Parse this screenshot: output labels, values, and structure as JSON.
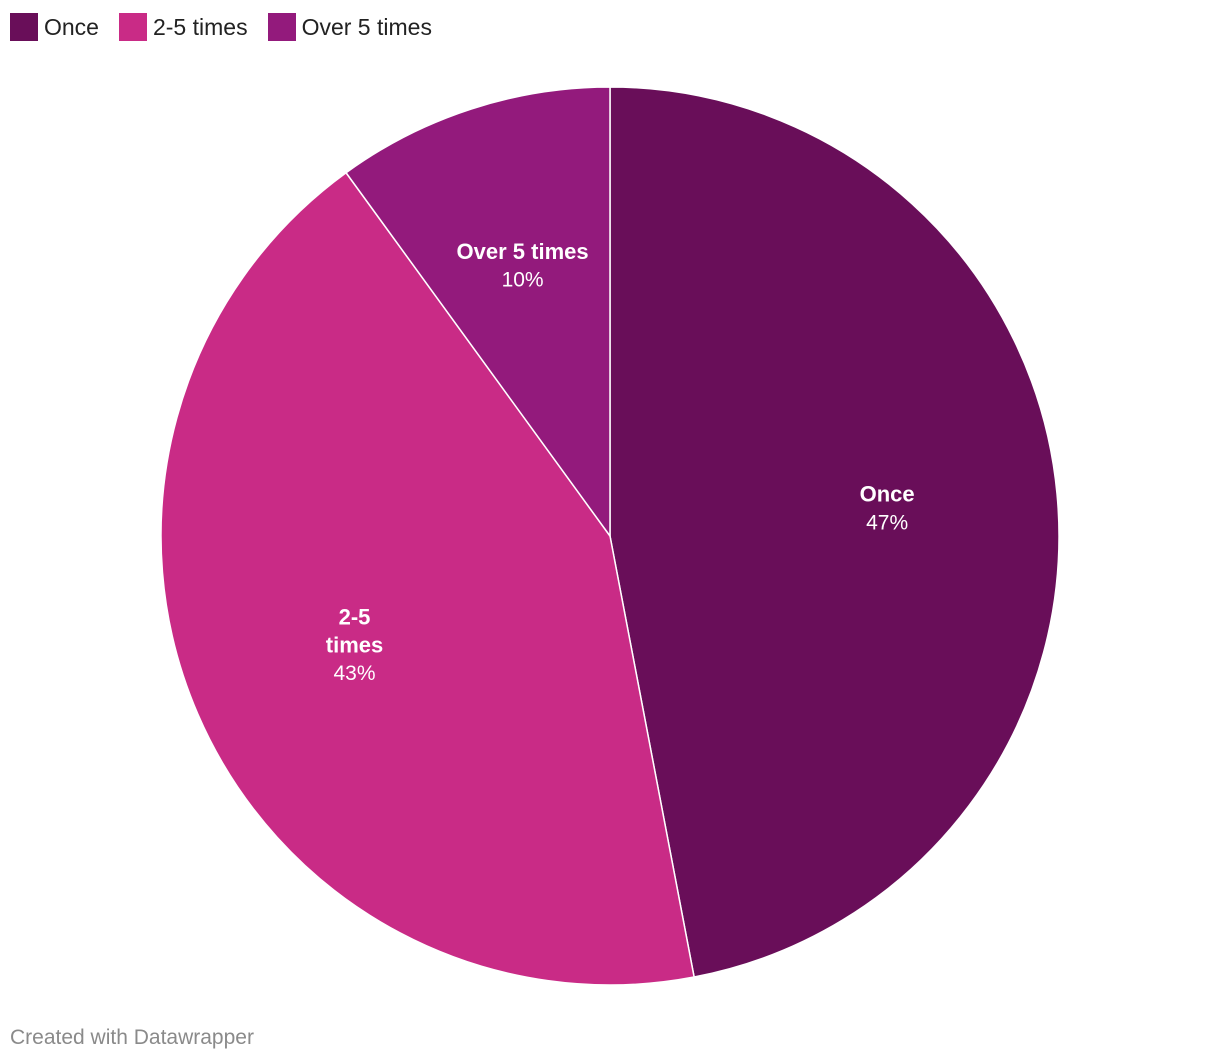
{
  "chart_data": {
    "type": "pie",
    "title": "",
    "legend_position": "top-left",
    "slices": [
      {
        "label": "Once",
        "label_lines": [
          "Once"
        ],
        "value": 47,
        "value_label": "47%",
        "color": "#690e59"
      },
      {
        "label": "2-5 times",
        "label_lines": [
          "2-5",
          "times"
        ],
        "value": 43,
        "value_label": "43%",
        "color": "#c92b86"
      },
      {
        "label": "Over 5 times",
        "label_lines": [
          "Over 5 times"
        ],
        "value": 10,
        "value_label": "10%",
        "color": "#931a7c"
      }
    ]
  },
  "legend": {
    "items": [
      {
        "label": "Once",
        "color": "#690e59"
      },
      {
        "label": "2-5 times",
        "color": "#c92b86"
      },
      {
        "label": "Over 5 times",
        "color": "#931a7c"
      }
    ]
  },
  "footer": {
    "credit": "Created with Datawrapper"
  }
}
